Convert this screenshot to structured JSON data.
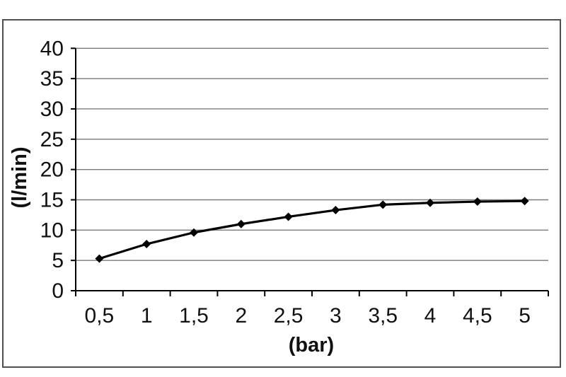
{
  "chart_data": {
    "type": "line",
    "title": "",
    "xlabel": "(bar)",
    "ylabel": "(l/min)",
    "x": [
      0.5,
      1,
      1.5,
      2,
      2.5,
      3,
      3.5,
      4,
      4.5,
      5
    ],
    "x_tick_labels": [
      "0,5",
      "1",
      "1,5",
      "2",
      "2,5",
      "3",
      "3,5",
      "4",
      "4,5",
      "5"
    ],
    "series": [
      {
        "values": [
          5.3,
          7.7,
          9.6,
          11.0,
          12.2,
          13.3,
          14.2,
          14.5,
          14.7,
          14.8
        ]
      }
    ],
    "ylim": [
      0,
      40
    ],
    "ytick_step": 5,
    "y_tick_labels": [
      "0",
      "5",
      "10",
      "15",
      "20",
      "25",
      "30",
      "35",
      "40"
    ],
    "grid": true,
    "legend": false,
    "marker": "diamond",
    "colors": {
      "line": "#000000",
      "grid": "#7a7a7a",
      "axis": "#000000",
      "text": "#111111",
      "frame": "#4f4f4f",
      "background": "#ffffff"
    }
  }
}
